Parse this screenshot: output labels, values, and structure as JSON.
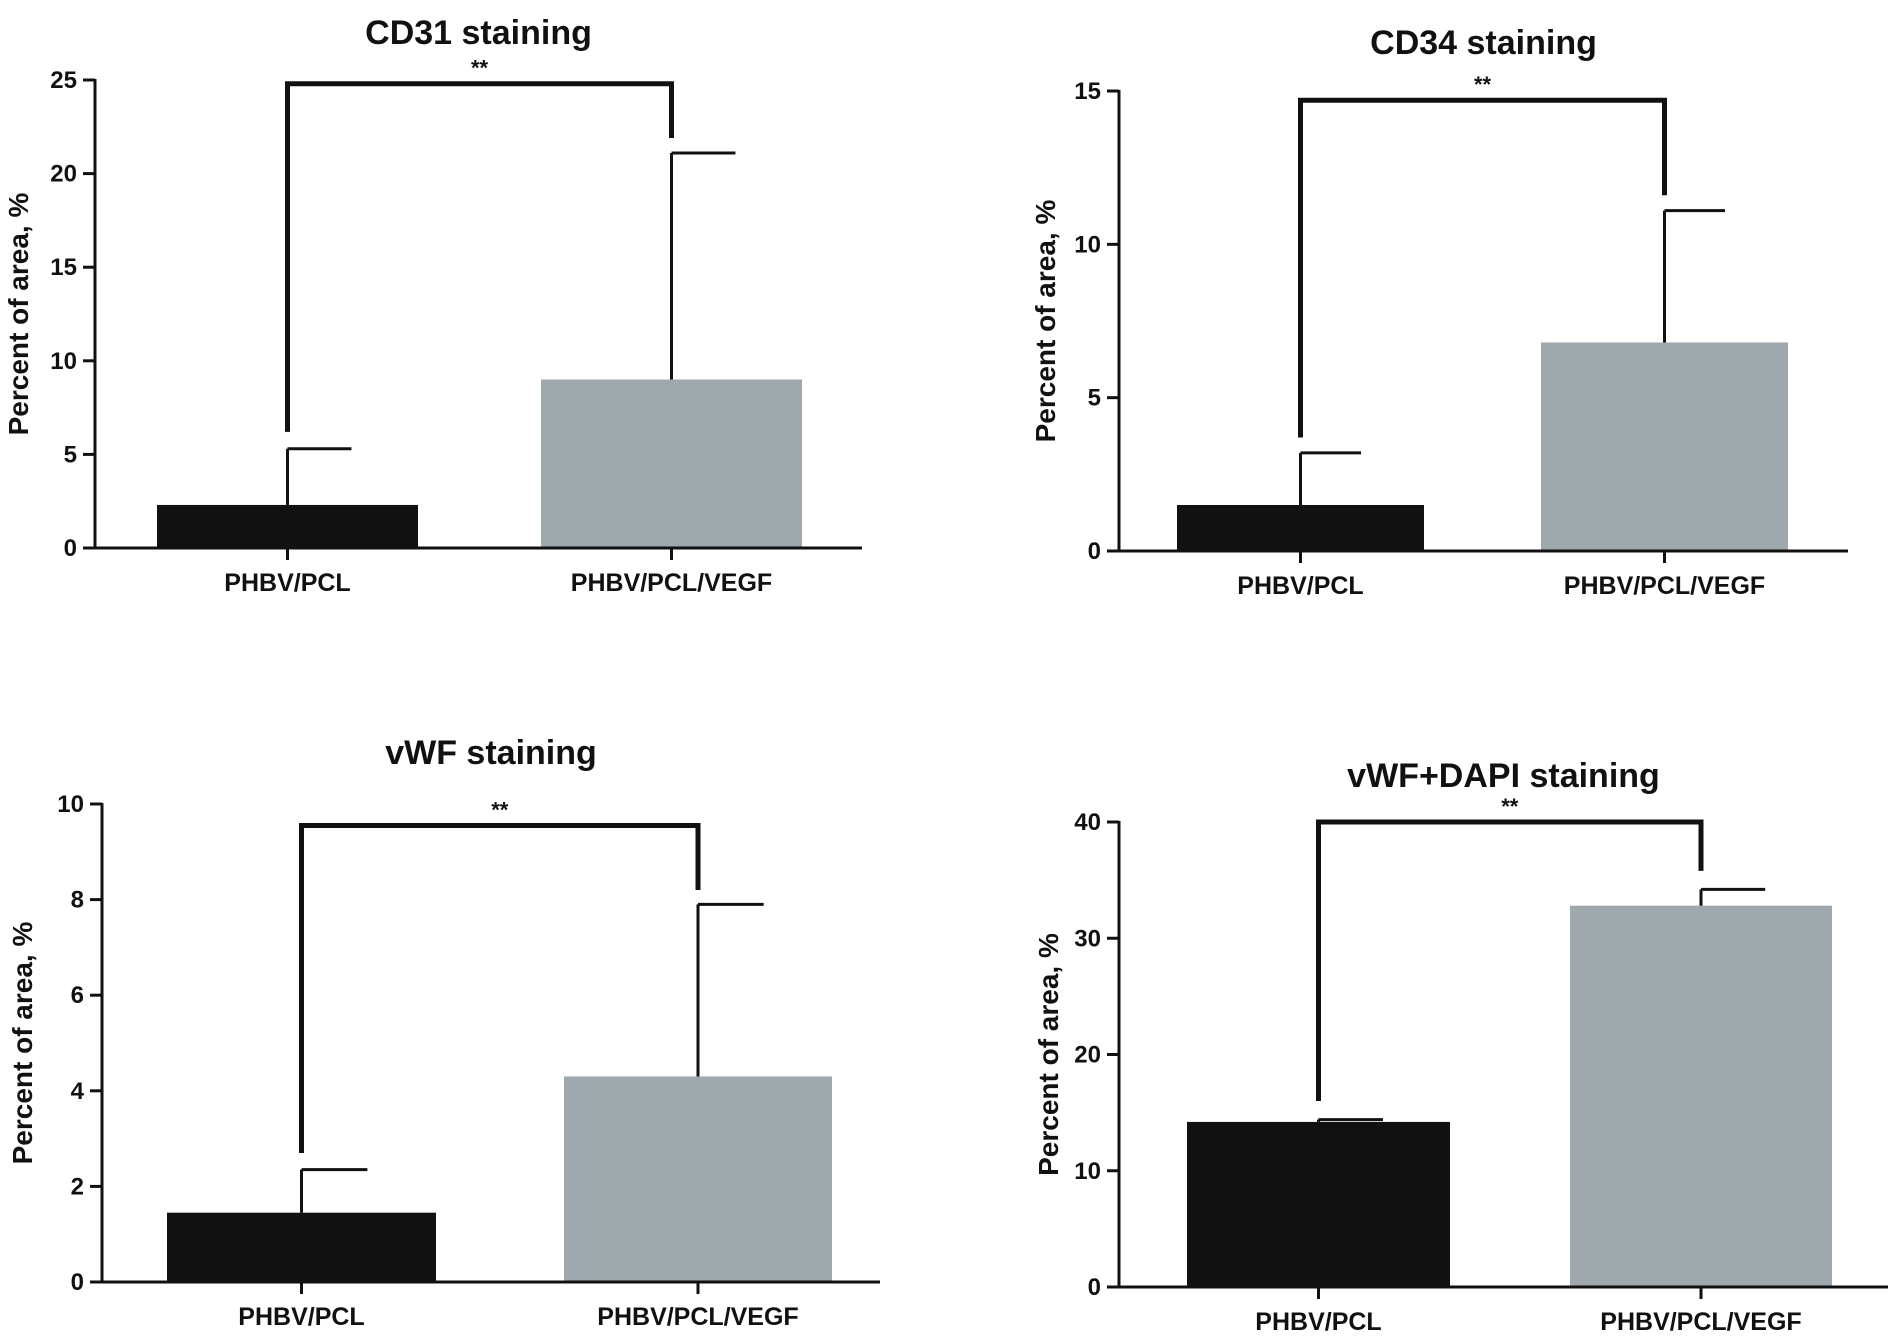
{
  "colors": {
    "control": "#111111",
    "vegf": "#9fa8ad"
  },
  "chart_data": [
    {
      "type": "bar",
      "title": "CD31 staining",
      "ylabel": "Percent of area,  %",
      "xlabel": "",
      "categories": [
        "PHBV/PCL",
        "PHBV/PCL/VEGF"
      ],
      "values": [
        2.3,
        9.0
      ],
      "errors": [
        3.0,
        12.1
      ],
      "ylim": [
        0,
        25
      ],
      "yticks": [
        0,
        5,
        10,
        15,
        20,
        25
      ],
      "significance": "**",
      "bracket_y": 24.8,
      "bracket_drops": [
        6.2,
        21.9
      ]
    },
    {
      "type": "bar",
      "title": "CD34 staining",
      "ylabel": "Percent of area,  %",
      "xlabel": "",
      "categories": [
        "PHBV/PCL",
        "PHBV/PCL/VEGF"
      ],
      "values": [
        1.5,
        6.8
      ],
      "errors": [
        1.7,
        4.3
      ],
      "ylim": [
        0,
        15
      ],
      "yticks": [
        0,
        5,
        10,
        15
      ],
      "significance": "**",
      "bracket_y": 14.7,
      "bracket_drops": [
        3.7,
        11.6
      ]
    },
    {
      "type": "bar",
      "title": "vWF staining",
      "ylabel": "Percent of area,  %",
      "xlabel": "",
      "categories": [
        "PHBV/PCL",
        "PHBV/PCL/VEGF"
      ],
      "values": [
        1.45,
        4.3
      ],
      "errors": [
        0.9,
        3.6
      ],
      "ylim": [
        0,
        10
      ],
      "yticks": [
        0,
        2,
        4,
        6,
        8,
        10
      ],
      "significance": "**",
      "bracket_y": 9.55,
      "bracket_drops": [
        2.7,
        8.2
      ]
    },
    {
      "type": "bar",
      "title": "vWF+DAPI staining",
      "ylabel": "Percent of area,  %",
      "xlabel": "",
      "categories": [
        "PHBV/PCL",
        "PHBV/PCL/VEGF"
      ],
      "values": [
        14.2,
        32.8
      ],
      "errors": [
        0.2,
        1.4
      ],
      "ylim": [
        0,
        40
      ],
      "yticks": [
        0,
        10,
        20,
        30,
        40
      ],
      "significance": "**",
      "bracket_y": 40.0,
      "bracket_drops": [
        16.0,
        35.8
      ]
    }
  ]
}
